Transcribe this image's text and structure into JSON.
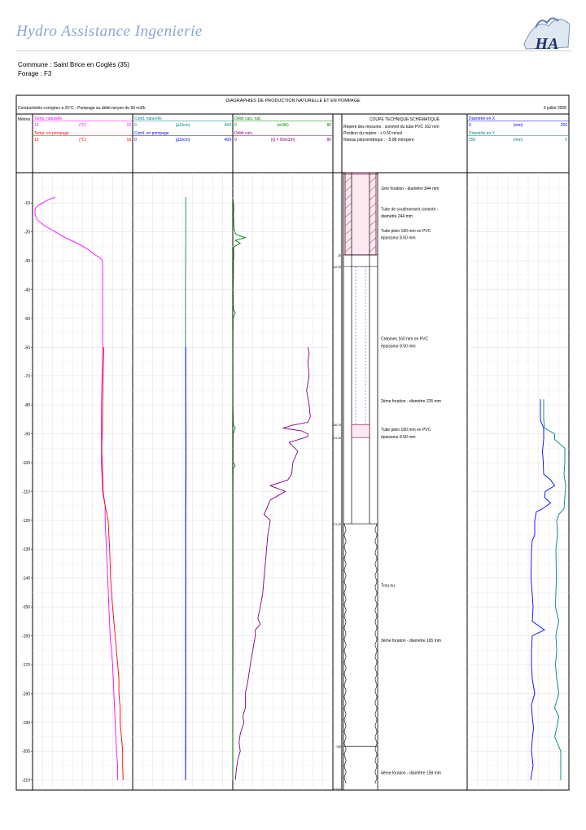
{
  "header": {
    "company": "Hydro Assistance Ingenierie",
    "commune": "Commune : Saint Brice en Coglès (35)",
    "forage": "Forage : F3"
  },
  "colors": {
    "temp_nat": "#ff00ff",
    "temp_pump": "#ff0000",
    "cond_nat": "#008080",
    "cond_pump": "#0000ff",
    "debit_nat": "#008000",
    "debit_calc": "#800080",
    "diam_x": "#0000ff",
    "diam_y": "#008080",
    "casing": "#800040",
    "logo_text": "#1c2f66",
    "company_text": "#8aa6cf"
  },
  "chart_data": {
    "type": "line",
    "title": "DIAGRAPHIES DE PRODUCTION NATURELLE ET EN POMPAGE",
    "subtitle": "Conductivités corrigées à 25°C - Pompage au débit moyen de 60 m3/h",
    "date": "9 juillet 2008",
    "ylabel": "Mètres",
    "ylim": [
      0,
      214
    ],
    "yticks": [
      -10,
      -20,
      -30,
      -40,
      -50,
      -60,
      -70,
      -80,
      -90,
      -100,
      -110,
      -120,
      -130,
      -140,
      -150,
      -160,
      -170,
      -180,
      -190,
      -200,
      -210
    ],
    "tracks": [
      {
        "id": "temp",
        "headers": [
          {
            "name": "Temp. naturelle",
            "unit": "(°C)",
            "min": "12",
            "max": "16",
            "color": "#ff00ff"
          },
          {
            "name": "Temp. en pompage",
            "unit": "(°C)",
            "min": "12",
            "max": "16",
            "color": "#ff0000"
          }
        ],
        "xlim": [
          12,
          16
        ],
        "series": [
          {
            "name": "Temp. naturelle",
            "color": "#ff00ff",
            "depth": [
              8,
              9,
              10,
              11,
              12,
              14,
              16,
              18,
              20,
              22,
              24,
              26,
              28,
              29,
              30,
              32,
              40,
              60,
              80,
              100,
              110,
              115,
              120,
              130,
              140,
              150,
              160,
              170,
              180,
              190,
              200,
              205,
              210
            ],
            "values": [
              12.9,
              12.6,
              12.4,
              12.2,
              12.1,
              12.1,
              12.2,
              12.5,
              12.9,
              13.3,
              13.8,
              14.2,
              14.5,
              14.7,
              14.8,
              14.8,
              14.8,
              14.8,
              14.75,
              14.75,
              14.8,
              14.9,
              14.9,
              14.95,
              15.0,
              15.05,
              15.1,
              15.2,
              15.25,
              15.3,
              15.35,
              15.4,
              15.4
            ]
          },
          {
            "name": "Temp. en pompage",
            "color": "#ff0000",
            "depth": [
              60,
              70,
              80,
              90,
              95,
              100,
              105,
              110,
              115,
              118,
              120,
              125,
              130,
              135,
              140,
              145,
              150,
              155,
              160,
              165,
              170,
              175,
              180,
              185,
              190,
              195,
              200,
              205,
              210
            ],
            "values": [
              14.85,
              14.82,
              14.8,
              14.78,
              14.76,
              14.78,
              14.8,
              14.82,
              14.9,
              14.98,
              15.02,
              15.05,
              15.08,
              15.1,
              15.12,
              15.15,
              15.2,
              15.25,
              15.3,
              15.35,
              15.4,
              15.45,
              15.45,
              15.5,
              15.5,
              15.55,
              15.6,
              15.6,
              15.62
            ]
          }
        ]
      },
      {
        "id": "cond",
        "headers": [
          {
            "name": "Cond. naturelle",
            "unit": "(µS/cm)",
            "min": "0",
            "max": "400",
            "color": "#008080"
          },
          {
            "name": "Cond. en pompage",
            "unit": "(µS/cm)",
            "min": "0",
            "max": "400",
            "color": "#0000ff"
          }
        ],
        "xlim": [
          0,
          400
        ],
        "series": [
          {
            "name": "Cond. naturelle",
            "color": "#008080",
            "depth": [
              8,
              20,
              40,
              60,
              80,
              100,
              120,
              140,
              160,
              180,
              200,
              210
            ],
            "values": [
              212,
              212,
              211,
              211,
              212,
              212,
              211,
              212,
              211,
              212,
              212,
              211
            ]
          },
          {
            "name": "Cond. en pompage",
            "color": "#0000ff",
            "depth": [
              60,
              80,
              100,
              120,
              140,
              160,
              180,
              200,
              210
            ],
            "values": [
              212,
              212,
              213,
              212,
              212,
              212,
              212,
              211,
              211
            ]
          }
        ]
      },
      {
        "id": "debit",
        "headers": [
          {
            "name": "Débit calc. nat.",
            "unit": "(m3/h)",
            "min": "0",
            "max": "80",
            "color": "#008000"
          },
          {
            "name": "Débit calc.",
            "unit": "(Q = 60m3/h)",
            "min": "0",
            "max": "80",
            "color": "#800080"
          }
        ],
        "xlim": [
          0,
          80
        ],
        "series": [
          {
            "name": "Débit calc. nat.",
            "color": "#008000",
            "depth": [
              8,
              10,
              12,
              14,
              16,
              18,
              20,
              21,
              22,
              23,
              24,
              25,
              26,
              28,
              30,
              35,
              40,
              47,
              48,
              50,
              60,
              70,
              80,
              87,
              88,
              90,
              100,
              101,
              102,
              110,
              140,
              160,
              180,
              210
            ],
            "values": [
              0,
              0.5,
              1,
              0.5,
              0.8,
              1,
              1.5,
              3,
              10,
              2,
              6,
              1.5,
              0.5,
              1,
              0.5,
              0.5,
              0.3,
              0.5,
              2,
              0.3,
              0.2,
              0.2,
              0.2,
              0.5,
              2,
              0.3,
              0.3,
              2,
              0.3,
              0.2,
              0.2,
              0.2,
              0.1,
              0
            ]
          },
          {
            "name": "Débit calc.",
            "color": "#800080",
            "depth": [
              60,
              62,
              65,
              70,
              75,
              80,
              84,
              86,
              87,
              88,
              89,
              90,
              91,
              93,
              96,
              100,
              104,
              106,
              108,
              110,
              113,
              116,
              118,
              120,
              125,
              130,
              135,
              140,
              145,
              150,
              154,
              156,
              158,
              160,
              165,
              170,
              176,
              180,
              185,
              188,
              190,
              194,
              197,
              200,
              203,
              206,
              210
            ],
            "values": [
              60,
              61,
              60,
              61,
              59,
              61,
              62,
              60,
              48,
              40,
              55,
              60,
              60,
              45,
              52,
              48,
              47,
              44,
              30,
              42,
              30,
              27,
              25,
              30,
              28,
              27,
              26,
              25,
              24,
              22,
              20,
              22,
              18,
              18,
              16,
              14,
              12,
              10,
              10,
              8,
              9,
              6,
              5,
              6,
              4,
              3,
              2
            ]
          }
        ]
      },
      {
        "id": "coupe",
        "title": "COUPE TECHNIQUE SCHEMATIQUE",
        "header_lines": [
          "Repère des mesures : sommet du tube PVC 162 mm",
          "Position du repère : + 0.50 m/sol",
          "Niveau piézométrique : - 5.08 m/repère"
        ],
        "annotations": [
          {
            "depth": -4.8,
            "text": "1ère foration - diamètre 344 mm"
          },
          {
            "depth": -12,
            "text": "Tube de soutènement cimenté -"
          },
          {
            "depth": -14.5,
            "text": "diamètre 244 mm"
          },
          {
            "depth": -19.5,
            "text": "Tube plein 160 mm en PVC"
          },
          {
            "depth": -22,
            "text": "épaisseur 8.50 mm"
          },
          {
            "depth": -57,
            "text": "Crépines 160 mm en PVC"
          },
          {
            "depth": -59.5,
            "text": "épaisseur 8.50 mm"
          },
          {
            "depth": -78.5,
            "text": "2ème foration - diamètre 225 mm"
          },
          {
            "depth": -88.5,
            "text": "Tube plein 160 mm en PVC"
          },
          {
            "depth": -91,
            "text": "épaisseur 8.50 mm"
          },
          {
            "depth": -142.5,
            "text": "Trou nu"
          },
          {
            "depth": -161.5,
            "text": "3ème foration - diamètre 165 mm"
          },
          {
            "depth": -207.5,
            "text": "4ème foration - diamètre 158 mm"
          }
        ],
        "depth_marks": [
          {
            "depth": 28,
            "text": "-28"
          },
          {
            "depth": 32,
            "text": "-32.00"
          },
          {
            "depth": 86.8,
            "text": "-86.75"
          },
          {
            "depth": 91.3,
            "text": "-91.30"
          },
          {
            "depth": 121.2,
            "text": "-121.20"
          },
          {
            "depth": 198.3,
            "text": "-198"
          },
          {
            "depth": 213,
            "text": "-213.0"
          }
        ]
      },
      {
        "id": "diam",
        "headers": [
          {
            "name": "Diamètre en X",
            "unit": "(mm)",
            "min": "0",
            "max": "250",
            "color": "#0000ff"
          },
          {
            "name": "Diamètre en Y",
            "unit": "(mm)",
            "min": "250",
            "max": "0",
            "color": "#008080"
          }
        ],
        "xlim": [
          0,
          250
        ],
        "series": [
          {
            "name": "Diamètre en X",
            "color": "#0000ff",
            "depth": [
              78,
              85,
              86,
              88,
              92,
              96,
              100,
              104,
              106,
              108,
              110,
              112,
              114,
              116,
              117,
              120,
              125,
              127,
              130,
              140,
              150,
              155,
              158,
              160,
              165,
              170,
              175,
              180,
              184,
              188,
              192,
              196,
              200,
              205,
              210
            ],
            "values": [
              180,
              180,
              182,
              188,
              188,
              185,
              187,
              188,
              205,
              215,
              192,
              190,
              205,
              185,
              170,
              166,
              166,
              160,
              158,
              157,
              162,
              160,
              190,
              160,
              158,
              158,
              160,
              166,
              158,
              160,
              163,
              160,
              158,
              162,
              156
            ]
          },
          {
            "name": "Diamètre en Y",
            "color": "#008080",
            "depth": [
              78,
              85,
              88,
              90,
              92,
              95,
              100,
              104,
              108,
              112,
              116,
              118,
              120,
              125,
              130,
              140,
              150,
              155,
              158,
              160,
              165,
              170,
              175,
              180,
              185,
              188,
              192,
              195,
              200,
              205,
              210
            ],
            "values": [
              62,
              62,
              60,
              35,
              35,
              10,
              10,
              12,
              8,
              10,
              12,
              25,
              30,
              28,
              32,
              31,
              33,
              25,
              30,
              32,
              30,
              33,
              30,
              25,
              35,
              25,
              30,
              35,
              20,
              20,
              20
            ]
          }
        ]
      }
    ]
  }
}
